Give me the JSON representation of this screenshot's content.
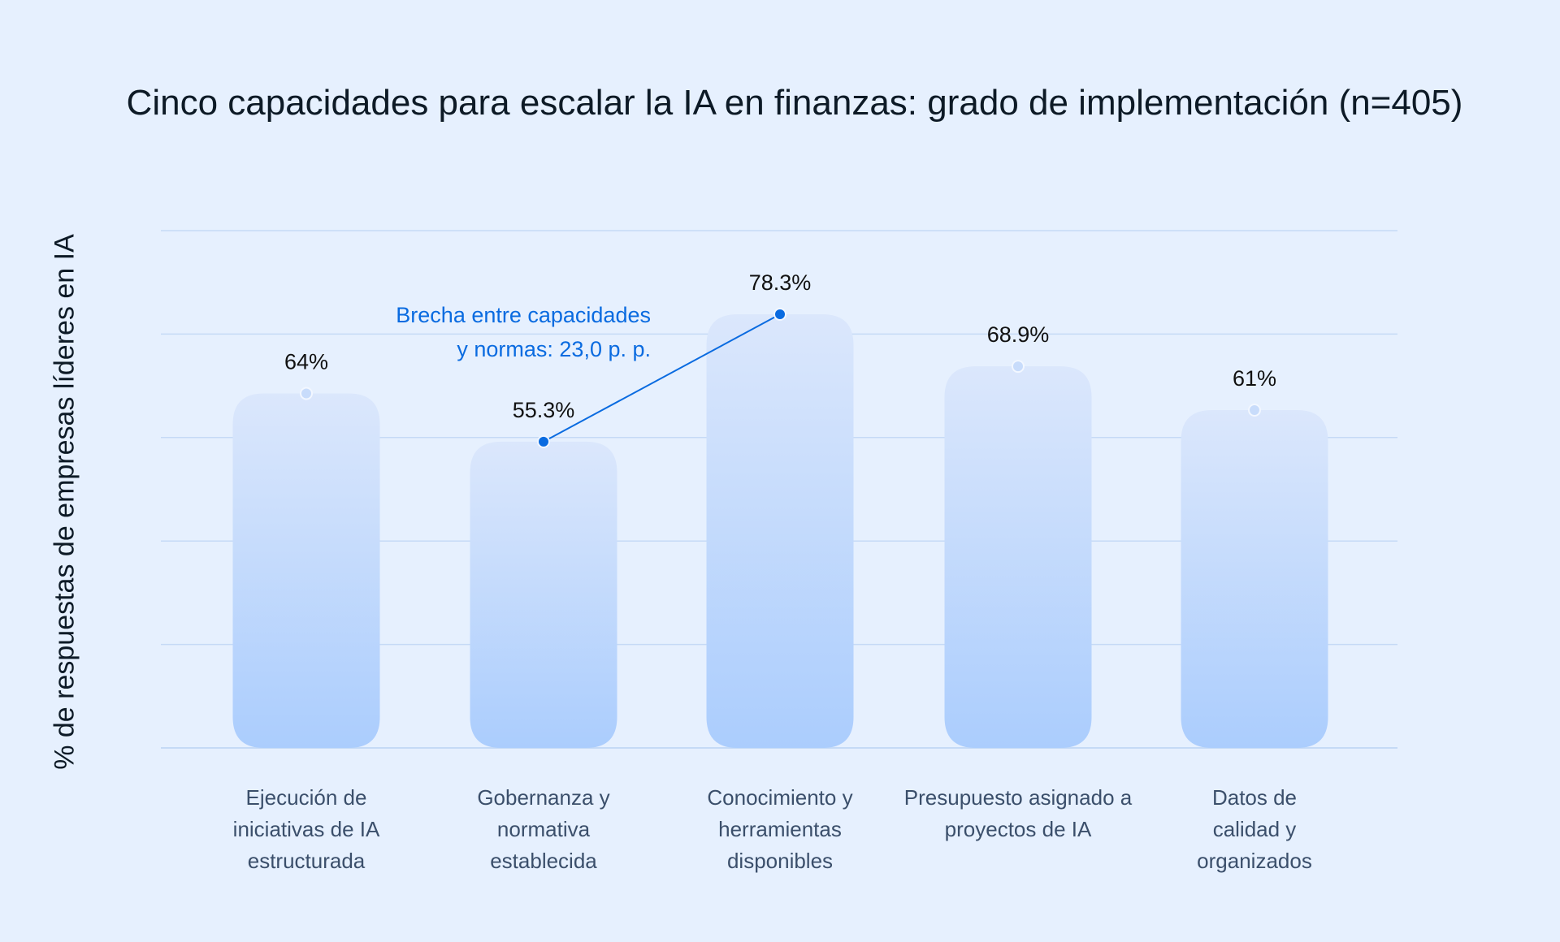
{
  "chart_data": {
    "type": "bar",
    "title": "Cinco capacidades para escalar la IA en finanzas: grado de implementación (n=405)",
    "ylabel": "% de respuestas de empresas líderes en IA",
    "xlabel": "",
    "categories": [
      "Ejecución de\niniciativas de IA\nestructurada",
      "Gobernanza y\nnormativa\nestablecida",
      "Conocimiento y\nherramientas\ndisponibles",
      "Presupuesto asignado a\nproyectos de IA",
      "Datos de\ncalidad y\norganizados"
    ],
    "values": [
      64,
      55.3,
      78.3,
      68.9,
      61
    ],
    "value_labels": [
      "64%",
      "55.3%",
      "78.3%",
      "68.9%",
      "61%"
    ],
    "grid": true,
    "gridline_count": 6,
    "annotation": {
      "text_line1": "Brecha entre capacidades",
      "text_line2": "y normas: 23,0 p. p.",
      "from_category": 1,
      "to_category": 2
    },
    "colors": {
      "background": "#e6f0fe",
      "bar_top": "#dbe7fc",
      "bar_bottom": "#abcdfd",
      "gridline": "#c5daf6",
      "annotation": "#0a6be0"
    }
  }
}
